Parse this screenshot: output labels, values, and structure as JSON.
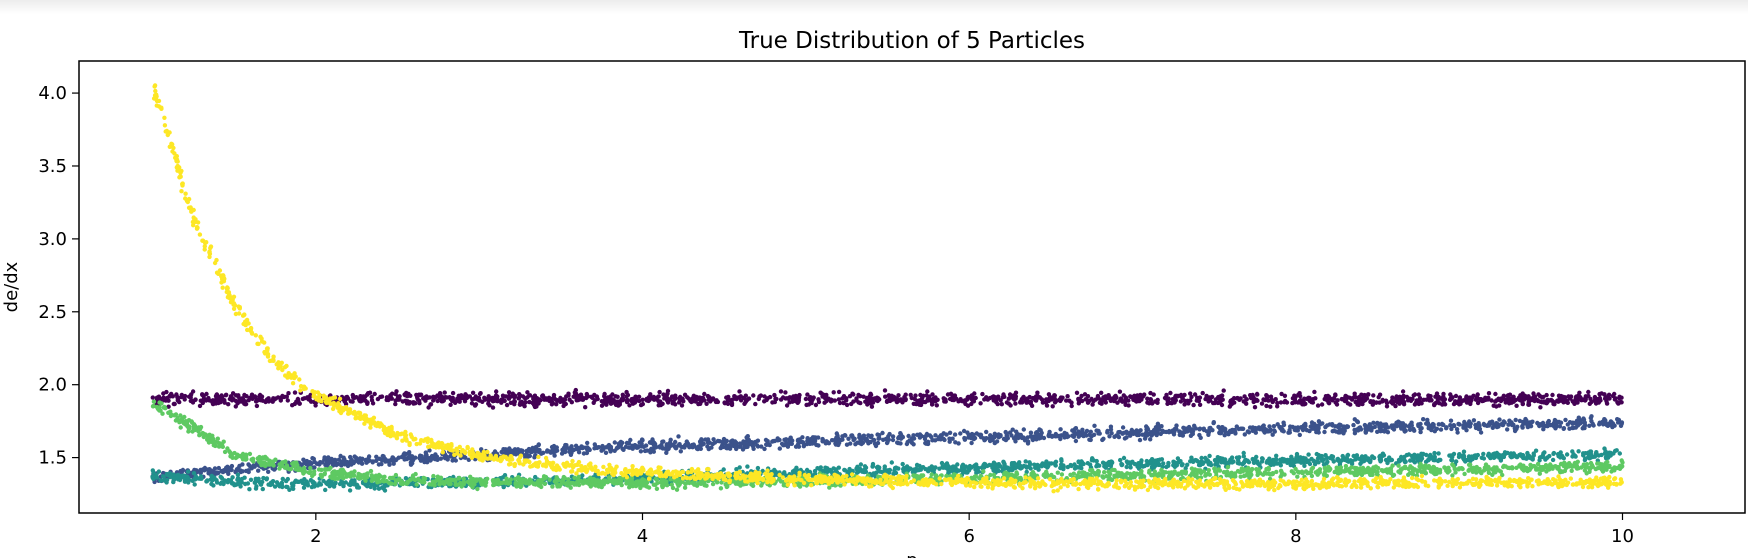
{
  "chart_data": {
    "type": "scatter",
    "title": "True Distribution of 5 Particles",
    "xlabel": "p",
    "ylabel": "de/dx",
    "xlim": [
      0.55,
      10.75
    ],
    "ylim": [
      1.12,
      4.22
    ],
    "xticks": [
      2,
      4,
      6,
      8,
      10
    ],
    "yticks": [
      1.5,
      2.0,
      2.5,
      3.0,
      3.5,
      4.0
    ],
    "ytick_labels": [
      "1.5",
      "2.0",
      "2.5",
      "3.0",
      "3.5",
      "4.0"
    ],
    "grid": false,
    "legend": "none",
    "colormap": "viridis",
    "series": [
      {
        "color": "#440154",
        "x": [
          1.0,
          2.0,
          3.0,
          4.0,
          5.0,
          6.0,
          7.0,
          8.0,
          9.0,
          10.0
        ],
        "y": [
          1.9,
          1.9,
          1.9,
          1.9,
          1.9,
          1.9,
          1.9,
          1.9,
          1.9,
          1.9
        ]
      },
      {
        "color": "#3b528b",
        "x": [
          1.0,
          1.5,
          2.0,
          3.0,
          4.0,
          5.0,
          6.0,
          7.0,
          8.0,
          9.0,
          10.0
        ],
        "y": [
          1.37,
          1.42,
          1.46,
          1.52,
          1.58,
          1.61,
          1.64,
          1.67,
          1.7,
          1.72,
          1.74
        ]
      },
      {
        "color": "#21918c",
        "x": [
          1.0,
          1.5,
          2.0,
          3.0,
          4.0,
          5.0,
          6.0,
          7.0,
          8.0,
          9.0,
          10.0
        ],
        "y": [
          1.38,
          1.33,
          1.32,
          1.33,
          1.36,
          1.4,
          1.43,
          1.46,
          1.48,
          1.5,
          1.52
        ]
      },
      {
        "color": "#5ec962",
        "x": [
          1.0,
          1.25,
          1.5,
          2.0,
          2.5,
          3.0,
          4.0,
          5.0,
          6.0,
          7.0,
          8.0,
          9.0,
          10.0
        ],
        "y": [
          1.88,
          1.7,
          1.52,
          1.4,
          1.35,
          1.33,
          1.33,
          1.34,
          1.36,
          1.38,
          1.4,
          1.42,
          1.44
        ]
      },
      {
        "color": "#fde725",
        "x": [
          1.0,
          1.25,
          1.5,
          1.75,
          2.0,
          2.5,
          3.0,
          3.5,
          4.0,
          5.0,
          6.0,
          7.0,
          8.0,
          9.0,
          10.0
        ],
        "y": [
          4.05,
          3.15,
          2.55,
          2.15,
          1.93,
          1.65,
          1.52,
          1.44,
          1.4,
          1.35,
          1.33,
          1.32,
          1.32,
          1.33,
          1.33
        ]
      }
    ]
  }
}
